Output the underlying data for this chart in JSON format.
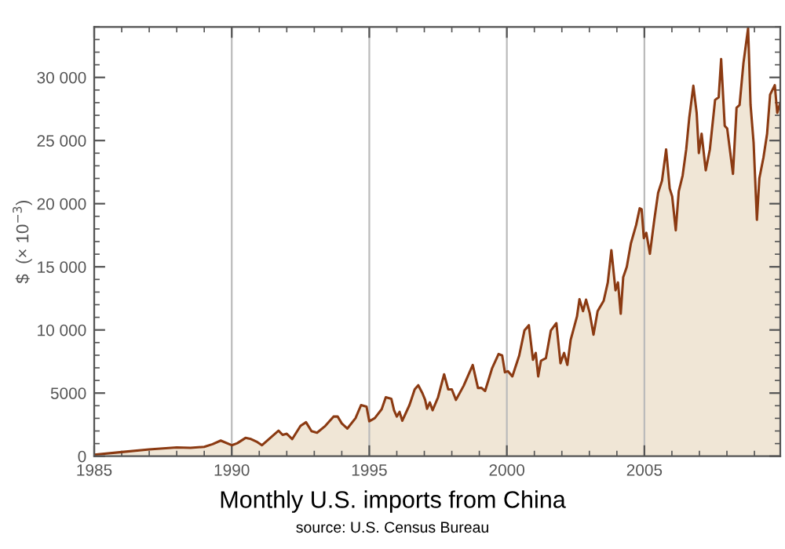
{
  "chart_data": {
    "type": "area",
    "title": "Monthly U.S. imports from China",
    "ylabel": "$  (× 10$^{−3}$)",
    "annotations": [
      "source: U.S. Census Bureau"
    ],
    "xlim": [
      1985,
      2009.94
    ],
    "ylim": [
      0,
      34000
    ],
    "xticks": [
      1985,
      1990,
      1995,
      2000,
      2005
    ],
    "yticks": [
      0,
      5000,
      {
        "value": 10000,
        "label": "10 000"
      },
      {
        "value": 15000,
        "label": "15 000"
      },
      {
        "value": 20000,
        "label": "20 000"
      },
      {
        "value": 25000,
        "label": "25 000"
      },
      {
        "value": 30000,
        "label": "30 000"
      }
    ],
    "grid": "x",
    "series": [
      {
        "color": "#8b3a12",
        "x": [
          1985,
          1986,
          1987,
          1988,
          1988.5,
          1989,
          1989.3,
          1989.6,
          1990,
          1990.2,
          1990.5,
          1990.7,
          1990.9,
          1991.1,
          1991.4,
          1991.7,
          1991.85,
          1992,
          1992.2,
          1992.5,
          1992.7,
          1992.9,
          1993.1,
          1993.4,
          1993.7,
          1993.85,
          1994,
          1994.2,
          1994.5,
          1994.7,
          1994.9,
          1995,
          1995.2,
          1995.45,
          1995.6,
          1995.8,
          1995.9,
          1996,
          1996.1,
          1996.2,
          1996.46,
          1996.65,
          1996.78,
          1996.93,
          1997.03,
          1997.1,
          1997.2,
          1997.3,
          1997.5,
          1997.72,
          1997.87,
          1998,
          1998.15,
          1998.43,
          1998.76,
          1998.95,
          1999.08,
          1999.21,
          1999.46,
          1999.7,
          1999.83,
          1999.93,
          2000.04,
          2000.2,
          2000.45,
          2000.64,
          2000.8,
          2000.95,
          2001.05,
          2001.14,
          2001.24,
          2001.42,
          2001.6,
          2001.8,
          2001.95,
          2002.08,
          2002.2,
          2002.32,
          2002.55,
          2002.64,
          2002.77,
          2002.88,
          2003.01,
          2003.15,
          2003.3,
          2003.52,
          2003.67,
          2003.8,
          2003.95,
          2004.04,
          2004.14,
          2004.23,
          2004.36,
          2004.51,
          2004.7,
          2004.83,
          2004.9,
          2004.98,
          2005.07,
          2005.2,
          2005.36,
          2005.5,
          2005.64,
          2005.79,
          2005.92,
          2006.01,
          2006.14,
          2006.25,
          2006.39,
          2006.52,
          2006.63,
          2006.78,
          2006.9,
          2006.98,
          2007.08,
          2007.23,
          2007.38,
          2007.57,
          2007.7,
          2007.79,
          2007.92,
          2008.01,
          2008.22,
          2008.35,
          2008.46,
          2008.6,
          2008.77,
          2008.86,
          2008.97,
          2009.09,
          2009.18,
          2009.33,
          2009.46,
          2009.57,
          2009.74,
          2009.83,
          2009.94
        ],
        "values": [
          120,
          330,
          540,
          700,
          660,
          740,
          950,
          1240,
          870,
          1030,
          1450,
          1360,
          1160,
          870,
          1450,
          2020,
          1690,
          1780,
          1360,
          2400,
          2690,
          1980,
          1860,
          2400,
          3140,
          3140,
          2600,
          2190,
          3020,
          4050,
          3930,
          2770,
          3020,
          3720,
          4670,
          4550,
          3640,
          3140,
          3510,
          2810,
          4050,
          5290,
          5620,
          5000,
          4460,
          3760,
          4260,
          3640,
          4670,
          6490,
          5290,
          5290,
          4460,
          5580,
          7230,
          5410,
          5410,
          5170,
          6940,
          8100,
          7980,
          6650,
          6730,
          6320,
          7980,
          9960,
          10370,
          7640,
          8180,
          6320,
          7560,
          7770,
          9960,
          10540,
          7360,
          8180,
          7230,
          9210,
          11070,
          12440,
          11490,
          12400,
          11360,
          9630,
          11490,
          12310,
          13760,
          16320,
          13140,
          13760,
          11280,
          14170,
          15000,
          16860,
          18310,
          19630,
          19550,
          17270,
          17690,
          16030,
          18720,
          20870,
          21820,
          24300,
          21200,
          20580,
          17890,
          20990,
          22230,
          24300,
          26780,
          29340,
          27190,
          24010,
          25540,
          22640,
          24300,
          28220,
          28430,
          31450,
          26160,
          25950,
          22360,
          27600,
          27810,
          31120,
          33900,
          27810,
          24830,
          18720,
          22020,
          23680,
          25540,
          28640,
          29380,
          27190,
          28000
        ]
      }
    ]
  }
}
